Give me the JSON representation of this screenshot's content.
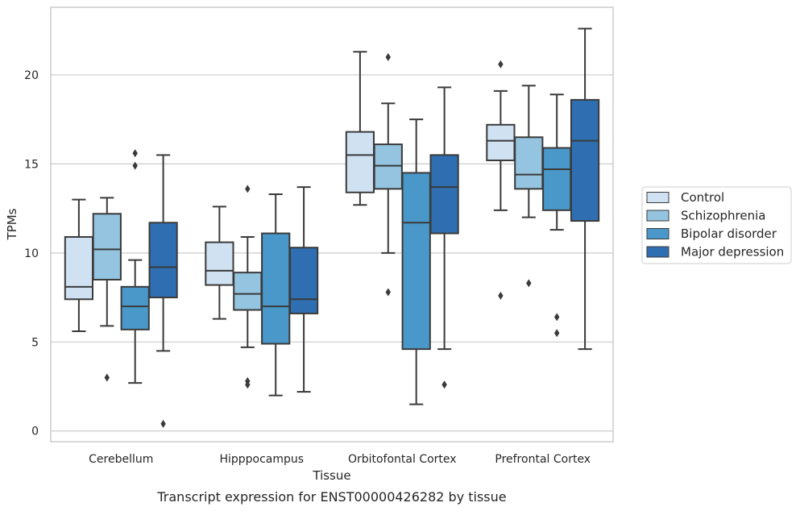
{
  "chart_data": {
    "type": "box",
    "xlabel": "Tissue",
    "ylabel": "TPMs",
    "caption": "Transcript expression for ENST00000426282 by tissue",
    "ylim": [
      -0.6,
      23.8
    ],
    "yticks": [
      0,
      5,
      10,
      15,
      20
    ],
    "grid": "horizontal",
    "legend_position": "right",
    "categories": [
      "Cerebellum",
      "Hipppocampus",
      "Orbitofontal Cortex",
      "Prefrontal Cortex"
    ],
    "series": [
      {
        "name": "Control",
        "color": "#d0e1f2",
        "boxes": [
          {
            "whislo": 5.6,
            "q1": 7.4,
            "med": 8.1,
            "q3": 10.9,
            "whishi": 13.0,
            "fliers": []
          },
          {
            "whislo": 6.3,
            "q1": 8.2,
            "med": 9.0,
            "q3": 10.6,
            "whishi": 12.6,
            "fliers": []
          },
          {
            "whislo": 12.7,
            "q1": 13.4,
            "med": 15.5,
            "q3": 16.8,
            "whishi": 21.3,
            "fliers": []
          },
          {
            "whislo": 12.4,
            "q1": 15.2,
            "med": 16.3,
            "q3": 17.2,
            "whishi": 19.1,
            "fliers": [
              20.6,
              7.6
            ]
          }
        ]
      },
      {
        "name": "Schizophrenia",
        "color": "#94c4df",
        "boxes": [
          {
            "whislo": 5.9,
            "q1": 8.5,
            "med": 10.2,
            "q3": 12.2,
            "whishi": 13.1,
            "fliers": [
              3.0
            ]
          },
          {
            "whislo": 4.7,
            "q1": 6.8,
            "med": 7.7,
            "q3": 8.9,
            "whishi": 10.9,
            "fliers": [
              13.6,
              2.8,
              2.6
            ]
          },
          {
            "whislo": 10.0,
            "q1": 13.6,
            "med": 14.9,
            "q3": 16.1,
            "whishi": 18.4,
            "fliers": [
              21.0,
              7.8
            ]
          },
          {
            "whislo": 12.0,
            "q1": 13.6,
            "med": 14.4,
            "q3": 16.5,
            "whishi": 19.4,
            "fliers": [
              8.3
            ]
          }
        ]
      },
      {
        "name": "Bipolar disorder",
        "color": "#4a98c9",
        "boxes": [
          {
            "whislo": 2.7,
            "q1": 5.7,
            "med": 7.0,
            "q3": 8.1,
            "whishi": 9.6,
            "fliers": [
              15.6,
              14.9
            ]
          },
          {
            "whislo": 2.0,
            "q1": 4.9,
            "med": 7.0,
            "q3": 11.1,
            "whishi": 13.3,
            "fliers": []
          },
          {
            "whislo": 1.5,
            "q1": 4.6,
            "med": 11.7,
            "q3": 14.5,
            "whishi": 17.5,
            "fliers": []
          },
          {
            "whislo": 11.3,
            "q1": 12.4,
            "med": 14.7,
            "q3": 15.9,
            "whishi": 18.9,
            "fliers": [
              6.4,
              5.5
            ]
          }
        ]
      },
      {
        "name": "Major depression",
        "color": "#2f6fb1",
        "boxes": [
          {
            "whislo": 4.5,
            "q1": 7.5,
            "med": 9.2,
            "q3": 11.7,
            "whishi": 15.5,
            "fliers": [
              0.4
            ]
          },
          {
            "whislo": 2.2,
            "q1": 6.6,
            "med": 7.4,
            "q3": 10.3,
            "whishi": 13.7,
            "fliers": []
          },
          {
            "whislo": 4.6,
            "q1": 11.1,
            "med": 13.7,
            "q3": 15.5,
            "whishi": 19.3,
            "fliers": [
              2.6
            ]
          },
          {
            "whislo": 4.6,
            "q1": 11.8,
            "med": 16.3,
            "q3": 18.6,
            "whishi": 22.6,
            "fliers": []
          }
        ]
      }
    ]
  }
}
